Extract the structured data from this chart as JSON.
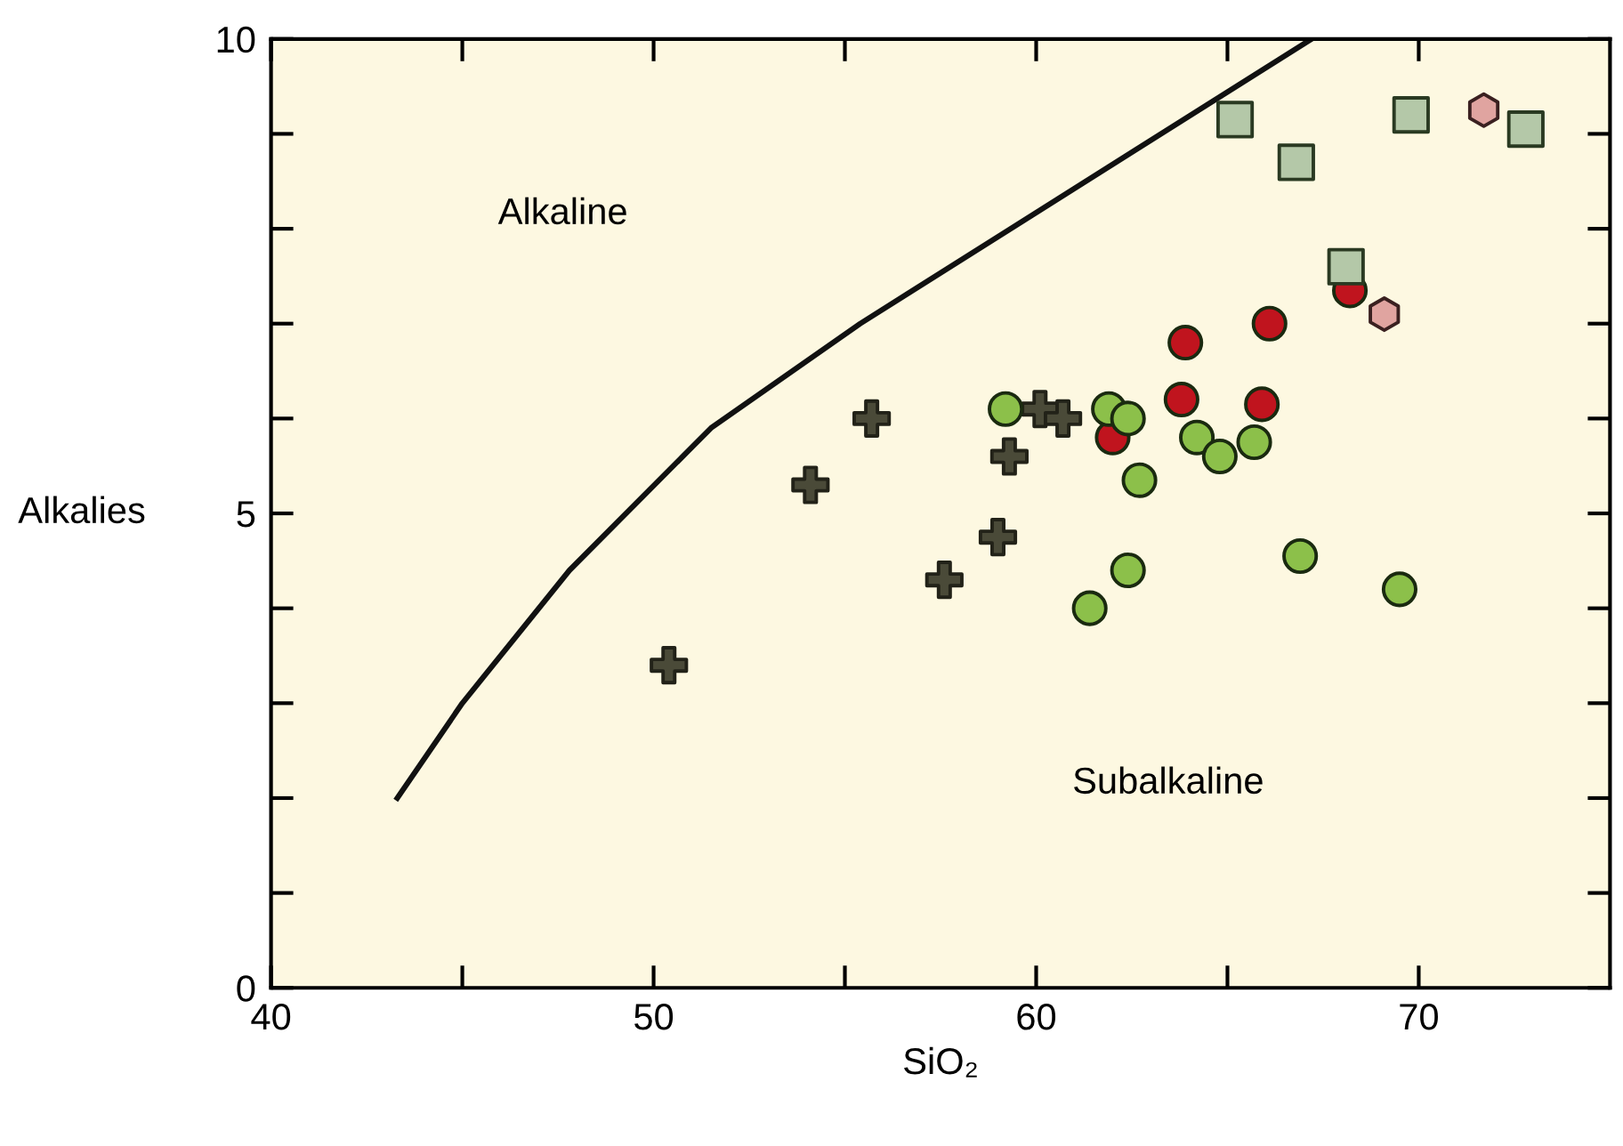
{
  "chart_data": {
    "type": "scatter",
    "xlabel": "SiO₂",
    "ylabel": "Alkalies",
    "xlim": [
      40,
      75
    ],
    "ylim": [
      0,
      10
    ],
    "xticks": [
      40,
      {
        "value": 45,
        "label": null
      },
      50,
      {
        "value": 55,
        "label": null
      },
      60,
      {
        "value": 65,
        "label": null
      },
      70
    ],
    "yticks": [
      0,
      {
        "value": 1,
        "label": null
      },
      {
        "value": 2,
        "label": null
      },
      {
        "value": 3,
        "label": null
      },
      {
        "value": 4,
        "label": null
      },
      5,
      {
        "value": 6,
        "label": null
      },
      {
        "value": 7,
        "label": null
      },
      {
        "value": 8,
        "label": null
      },
      {
        "value": 9,
        "label": null
      },
      10
    ],
    "grid": false,
    "legend": false,
    "annotations": [
      "Alkaline",
      "Subalkaline"
    ],
    "series": [
      {
        "type": "line",
        "color": "#111111",
        "line_style": "solid",
        "marker": "none",
        "x": [
          43.3,
          45.0,
          47.8,
          51.5,
          55.4,
          67.2
        ],
        "values": [
          2.0,
          3.0,
          4.4,
          5.9,
          7.0,
          10.0
        ]
      },
      {
        "color": "#4a4a38",
        "marker": "cross",
        "x": [
          50.4,
          54.1,
          55.7,
          57.6,
          59.0,
          59.3,
          60.1,
          60.7
        ],
        "values": [
          3.4,
          5.3,
          6.0,
          4.3,
          4.75,
          5.6,
          6.1,
          6.0
        ]
      },
      {
        "color": "#c0141e",
        "marker": "circle",
        "x": [
          63.9,
          66.1,
          63.8,
          65.9,
          62.0,
          68.2
        ],
        "values": [
          6.8,
          7.0,
          6.2,
          6.15,
          5.8,
          7.35
        ]
      },
      {
        "color": "#8cc04a",
        "marker": "circle",
        "x": [
          59.2,
          61.9,
          62.4,
          64.2,
          64.8,
          65.7,
          62.7,
          62.4,
          61.4,
          66.9,
          69.5
        ],
        "values": [
          6.1,
          6.1,
          6.0,
          5.8,
          5.6,
          5.75,
          5.35,
          4.4,
          4.0,
          4.55,
          4.2
        ]
      },
      {
        "color": "#e0a4a0",
        "x": [
          71.7,
          69.1
        ],
        "values": [
          9.25,
          7.1
        ]
      },
      {
        "color": "#b4c8a8",
        "marker": "square",
        "x": [
          65.2,
          66.8,
          69.8,
          72.8,
          68.1
        ],
        "values": [
          9.15,
          8.7,
          9.2,
          9.05,
          7.6
        ]
      }
    ]
  }
}
